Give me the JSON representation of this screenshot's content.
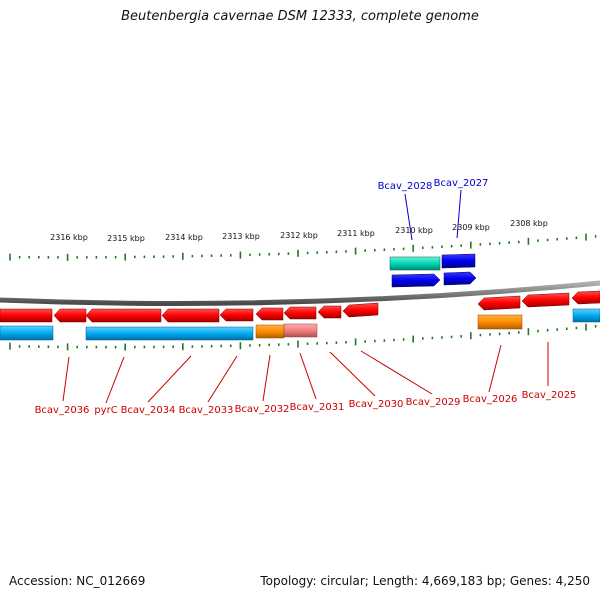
{
  "title": "Beutenbergia cavernae DSM 12333, complete genome",
  "footer": {
    "accession": "Accession: NC_012669",
    "summary": "Topology: circular; Length: 4,669,183 bp; Genes: 4,250"
  },
  "colors": {
    "backbone": "#7f7f7f",
    "tick": "#1f7a1f",
    "forward_gene": "#ff0000",
    "reverse_gene": "#0000ee",
    "cds_cyan": "#00aaee",
    "cds_teal": "#00d6b4",
    "cds_orange": "#ff8c00",
    "cds_pink": "#f08080",
    "label_red": "#cc0000",
    "label_blue": "#0000cc"
  },
  "scale_labels": [
    "2316 kbp",
    "2315 kbp",
    "2314 kbp",
    "2313 kbp",
    "2312 kbp",
    "2311 kbp",
    "2310 kbp",
    "2309 kbp",
    "2308 kbp"
  ],
  "genes_lower": [
    "Bcav_2036",
    "pyrC",
    "Bcav_2034",
    "Bcav_2033",
    "Bcav_2032",
    "Bcav_2031",
    "Bcav_2030",
    "Bcav_2029",
    "Bcav_2026",
    "Bcav_2025"
  ],
  "genes_upper": [
    "Bcav_2028",
    "Bcav_2027"
  ]
}
